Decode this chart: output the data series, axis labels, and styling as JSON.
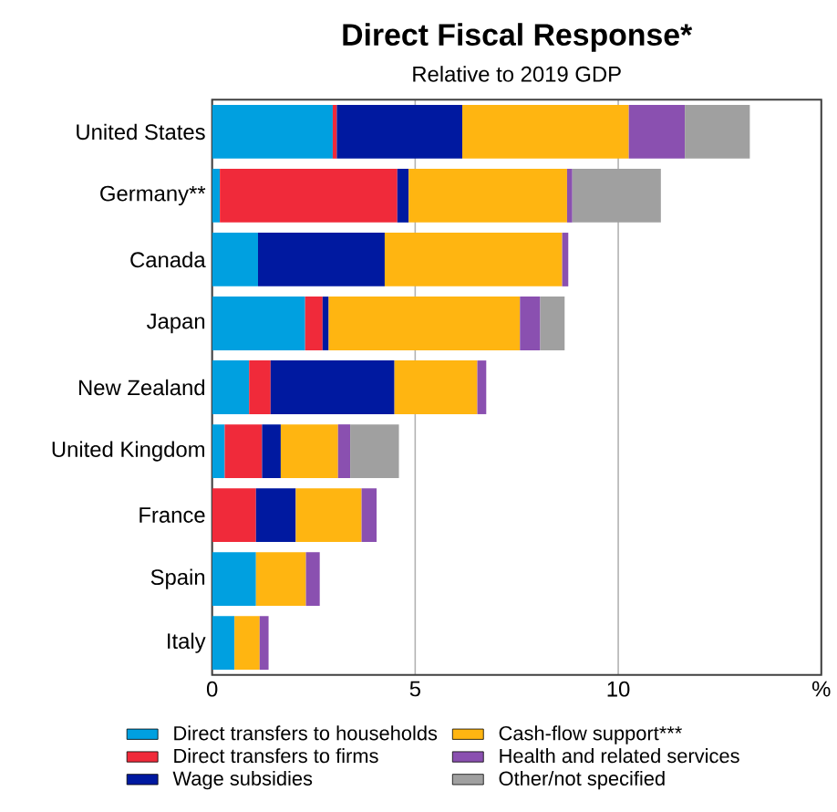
{
  "chart_data": {
    "type": "bar",
    "orientation": "horizontal",
    "stacked": true,
    "title": "Direct Fiscal Response*",
    "subtitle": "Relative to 2019 GDP",
    "categories": [
      "United States",
      "Germany**",
      "Canada",
      "Japan",
      "New Zealand",
      "United Kingdom",
      "France",
      "Spain",
      "Italy"
    ],
    "series": [
      {
        "name": "Direct transfers to households",
        "color": "#00a0e0",
        "values": [
          2.97,
          0.19,
          1.13,
          2.29,
          0.91,
          0.31,
          null,
          1.08,
          0.55
        ]
      },
      {
        "name": "Direct transfers to firms",
        "color": "#f02a3a",
        "values": [
          0.1,
          4.37,
          null,
          0.43,
          0.53,
          0.92,
          1.08,
          null,
          null
        ]
      },
      {
        "name": "Wage subsidies",
        "color": "#0019a0",
        "values": [
          3.09,
          0.28,
          3.12,
          0.15,
          3.05,
          0.46,
          0.98,
          null,
          null
        ]
      },
      {
        "name": "Cash-flow support***",
        "color": "#ffb511",
        "values": [
          4.1,
          3.9,
          4.37,
          4.71,
          2.04,
          1.41,
          1.62,
          1.23,
          0.62
        ]
      },
      {
        "name": "Health and related services",
        "color": "#8a50b0",
        "values": [
          1.38,
          0.13,
          0.15,
          0.5,
          0.22,
          0.3,
          0.37,
          0.34,
          0.22
        ]
      },
      {
        "name": "Other/not specified",
        "color": "#a0a0a0",
        "values": [
          1.6,
          2.18,
          null,
          0.6,
          null,
          1.2,
          null,
          null,
          null
        ]
      }
    ],
    "xlim": [
      0,
      15
    ],
    "xticks": [
      0,
      5,
      10,
      {
        "value": 15,
        "label": "%"
      }
    ],
    "grid": "x",
    "legend": "bottom"
  }
}
